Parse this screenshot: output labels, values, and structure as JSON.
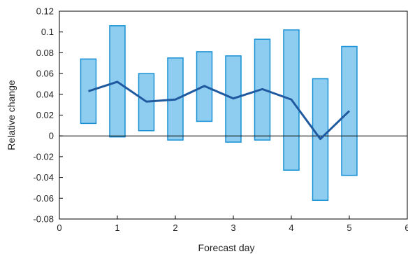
{
  "chart_data": {
    "type": "bar",
    "xlabel": "Forecast day",
    "ylabel": "Relative change",
    "xlim": [
      0,
      6
    ],
    "ylim": [
      -0.08,
      0.12
    ],
    "grid": false,
    "x_ticks": [
      0,
      1,
      2,
      3,
      4,
      5,
      6
    ],
    "x_tick_labels": [
      "0",
      "1",
      "2",
      "3",
      "4",
      "5",
      "6"
    ],
    "y_ticks": [
      -0.08,
      -0.06,
      -0.04,
      -0.02,
      0,
      0.02,
      0.04,
      0.06,
      0.08,
      0.1,
      0.12
    ],
    "y_tick_labels": [
      "-0.08",
      "-0.06",
      "-0.04",
      "-0.02",
      "0",
      "0.02",
      "0.04",
      "0.06",
      "0.08",
      "0.1",
      "0.12"
    ],
    "colors": {
      "bar_fill": "#8ecdf0",
      "bar_stroke": "#1a91d4",
      "line": "#1f5aa0",
      "axis": "#000000"
    },
    "ranges": [
      {
        "x": 0.5,
        "low": 0.012,
        "high": 0.074
      },
      {
        "x": 1.0,
        "low": -0.001,
        "high": 0.106
      },
      {
        "x": 1.5,
        "low": 0.005,
        "high": 0.06
      },
      {
        "x": 2.0,
        "low": -0.004,
        "high": 0.075
      },
      {
        "x": 2.5,
        "low": 0.014,
        "high": 0.081
      },
      {
        "x": 3.0,
        "low": -0.006,
        "high": 0.077
      },
      {
        "x": 3.5,
        "low": -0.004,
        "high": 0.093
      },
      {
        "x": 4.0,
        "low": -0.033,
        "high": 0.102
      },
      {
        "x": 4.5,
        "low": -0.062,
        "high": 0.055
      },
      {
        "x": 5.0,
        "low": -0.038,
        "high": 0.086
      }
    ],
    "line": {
      "x": [
        0.5,
        1.0,
        1.5,
        2.0,
        2.5,
        3.0,
        3.5,
        4.0,
        4.5,
        5.0
      ],
      "y": [
        0.043,
        0.052,
        0.033,
        0.035,
        0.048,
        0.036,
        0.045,
        0.035,
        -0.003,
        0.024
      ]
    }
  }
}
